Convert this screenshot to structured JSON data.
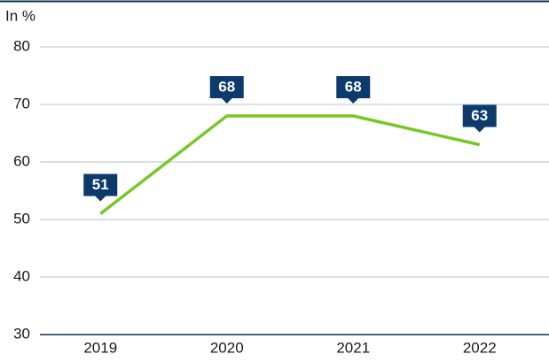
{
  "chart_data": {
    "type": "line",
    "y_label": "In %",
    "categories": [
      "2019",
      "2020",
      "2021",
      "2022"
    ],
    "values": [
      51,
      68,
      68,
      63
    ],
    "color": "#76c828",
    "label_color": "#0b3a6b",
    "ylim": [
      30,
      80
    ],
    "yticks": [
      30,
      40,
      50,
      60,
      70,
      80
    ],
    "grid": true
  }
}
